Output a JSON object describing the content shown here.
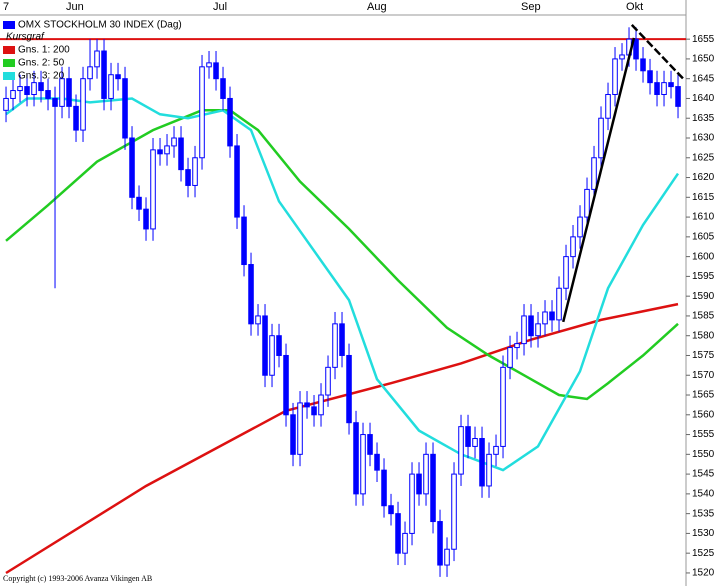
{
  "chart_data": {
    "type": "candlestick",
    "title": "OMX STOCKHOLM 30 INDEX (Dag)",
    "candle_name": "Kursgraf",
    "candle_color": "#0000ff",
    "copyright": "Copyright (c) 1993-2006 Avanza Vikingen AB",
    "categories": [
      "7",
      null,
      null,
      null,
      null,
      null,
      null,
      null,
      null,
      "Jun",
      null,
      null,
      null,
      null,
      null,
      null,
      null,
      null,
      null,
      null,
      null,
      null,
      null,
      null,
      null,
      null,
      null,
      null,
      null,
      null,
      "Jul",
      null,
      null,
      null,
      null,
      null,
      null,
      null,
      null,
      null,
      null,
      null,
      null,
      null,
      null,
      null,
      null,
      null,
      null,
      null,
      null,
      null,
      "Aug",
      null,
      null,
      null,
      null,
      null,
      null,
      null,
      null,
      null,
      null,
      null,
      null,
      null,
      null,
      null,
      null,
      null,
      null,
      null,
      null,
      null,
      "Sep",
      null,
      null,
      null,
      null,
      null,
      null,
      null,
      null,
      null,
      null,
      null,
      null,
      null,
      null,
      "Okt",
      null,
      null,
      null,
      null,
      null,
      null,
      null
    ],
    "open": [
      1637,
      1640,
      1642,
      1643,
      1641,
      1644,
      1642,
      1640,
      1638,
      1645,
      1638,
      1632,
      1645,
      1648,
      1652,
      1640,
      1646,
      1645,
      1630,
      1615,
      1612,
      1607,
      1627,
      1626,
      1628,
      1630,
      1622,
      1618,
      1625,
      1648,
      1649,
      1645,
      1640,
      1628,
      1610,
      1598,
      1583,
      1585,
      1570,
      1580,
      1575,
      1560,
      1550,
      1563,
      1562,
      1560,
      1565,
      1572,
      1583,
      1575,
      1558,
      1540,
      1555,
      1550,
      1546,
      1537,
      1535,
      1525,
      1530,
      1545,
      1540,
      1550,
      1533,
      1522,
      1526,
      1545,
      1557,
      1552,
      1554,
      1542,
      1550,
      1552,
      1572,
      1577,
      1578,
      1585,
      1580,
      1583,
      1586,
      1584,
      1592,
      1600,
      1605,
      1610,
      1617,
      1625,
      1635,
      1641,
      1650,
      1651,
      1655,
      1650,
      1647,
      1644,
      1641,
      1644,
      1643
    ],
    "high": [
      1643,
      1645,
      1646,
      1646,
      1647,
      1647,
      1645,
      1643,
      1648,
      1648,
      1641,
      1648,
      1655,
      1655,
      1655,
      1649,
      1649,
      1648,
      1633,
      1618,
      1615,
      1630,
      1630,
      1631,
      1633,
      1633,
      1625,
      1628,
      1651,
      1652,
      1652,
      1648,
      1643,
      1631,
      1613,
      1601,
      1588,
      1588,
      1583,
      1583,
      1578,
      1563,
      1566,
      1566,
      1565,
      1568,
      1575,
      1586,
      1586,
      1578,
      1561,
      1558,
      1558,
      1553,
      1549,
      1540,
      1538,
      1533,
      1548,
      1548,
      1553,
      1553,
      1536,
      1529,
      1548,
      1560,
      1560,
      1557,
      1557,
      1553,
      1555,
      1575,
      1580,
      1581,
      1588,
      1588,
      1586,
      1589,
      1589,
      1595,
      1603,
      1608,
      1613,
      1620,
      1628,
      1638,
      1644,
      1653,
      1654,
      1658,
      1658,
      1653,
      1650,
      1647,
      1647,
      1647,
      1646
    ],
    "low": [
      1634,
      1637,
      1639,
      1638,
      1638,
      1639,
      1637,
      1592,
      1635,
      1635,
      1629,
      1629,
      1642,
      1645,
      1637,
      1637,
      1642,
      1627,
      1612,
      1609,
      1604,
      1604,
      1623,
      1623,
      1625,
      1619,
      1615,
      1615,
      1622,
      1645,
      1642,
      1637,
      1625,
      1607,
      1595,
      1580,
      1580,
      1567,
      1567,
      1572,
      1557,
      1547,
      1547,
      1559,
      1557,
      1557,
      1562,
      1569,
      1572,
      1555,
      1537,
      1537,
      1547,
      1543,
      1534,
      1532,
      1522,
      1522,
      1527,
      1537,
      1537,
      1530,
      1519,
      1519,
      1523,
      1542,
      1549,
      1549,
      1539,
      1539,
      1547,
      1549,
      1569,
      1574,
      1575,
      1577,
      1577,
      1580,
      1581,
      1581,
      1589,
      1597,
      1602,
      1607,
      1614,
      1622,
      1632,
      1638,
      1647,
      1648,
      1647,
      1644,
      1641,
      1638,
      1638,
      1640,
      1635
    ],
    "close": [
      1640,
      1642,
      1643,
      1641,
      1644,
      1642,
      1640,
      1638,
      1645,
      1638,
      1632,
      1645,
      1648,
      1652,
      1640,
      1646,
      1645,
      1630,
      1615,
      1612,
      1607,
      1627,
      1626,
      1628,
      1630,
      1622,
      1618,
      1625,
      1648,
      1649,
      1645,
      1640,
      1628,
      1610,
      1598,
      1583,
      1585,
      1570,
      1580,
      1575,
      1560,
      1550,
      1563,
      1562,
      1560,
      1565,
      1572,
      1583,
      1575,
      1558,
      1540,
      1555,
      1550,
      1546,
      1537,
      1535,
      1525,
      1530,
      1545,
      1540,
      1550,
      1533,
      1522,
      1526,
      1545,
      1557,
      1552,
      1554,
      1542,
      1550,
      1552,
      1572,
      1577,
      1578,
      1585,
      1580,
      1583,
      1586,
      1584,
      1592,
      1600,
      1605,
      1610,
      1617,
      1625,
      1635,
      1641,
      1650,
      1651,
      1655,
      1650,
      1647,
      1644,
      1641,
      1644,
      1643,
      1638
    ],
    "series": [
      {
        "name": "Gns. 1: 200",
        "color": "#dd1111",
        "x": [
          0,
          20,
          40,
          55,
          65,
          75,
          85,
          96
        ],
        "values": [
          1520,
          1542,
          1561,
          1568,
          1573,
          1579,
          1584,
          1588
        ]
      },
      {
        "name": "Gns. 2: 50",
        "color": "#22cc22",
        "x": [
          0,
          6,
          13,
          21,
          28,
          32,
          36,
          42,
          49,
          56,
          63,
          69,
          75,
          79,
          83,
          86,
          91,
          96
        ],
        "values": [
          1604,
          1613,
          1624,
          1632,
          1637,
          1637,
          1632,
          1619,
          1607,
          1594,
          1582,
          1575,
          1569,
          1565,
          1564,
          1568,
          1575,
          1583
        ]
      },
      {
        "name": "Gns. 3: 20",
        "color": "#22dddd",
        "x": [
          0,
          3,
          8,
          12,
          18,
          22,
          26,
          31,
          35,
          39,
          45,
          49,
          53,
          59,
          65,
          71,
          76,
          82,
          86,
          91,
          96
        ],
        "values": [
          1636,
          1640,
          1640,
          1639,
          1640,
          1636,
          1635,
          1637,
          1632,
          1614,
          1599,
          1589,
          1569,
          1556,
          1550,
          1546,
          1552,
          1571,
          1592,
          1608,
          1621
        ]
      }
    ],
    "reference_lines": [
      {
        "value": 1655,
        "color": "#dd1111"
      }
    ],
    "trend_lines": [
      {
        "x": [
          79.6,
          89.7
        ],
        "values": [
          1583.5,
          1655.3
        ],
        "color": "#000000"
      },
      {
        "x": [
          89.4,
          96.9
        ],
        "values": [
          1658.6,
          1644.7
        ],
        "color": "#000000"
      }
    ],
    "xlim": [
      -0.86,
      97.14
    ],
    "ylim": [
      1516.7,
      1664.9
    ],
    "yticks": [
      1520,
      1525,
      1530,
      1535,
      1540,
      1545,
      1550,
      1555,
      1560,
      1565,
      1570,
      1575,
      1580,
      1585,
      1590,
      1595,
      1600,
      1605,
      1610,
      1615,
      1620,
      1625,
      1630,
      1635,
      1640,
      1645,
      1650,
      1655
    ]
  }
}
